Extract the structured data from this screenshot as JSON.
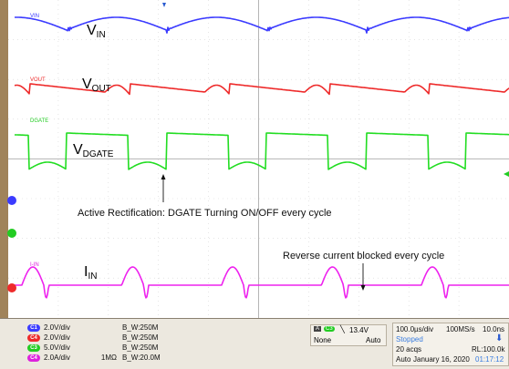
{
  "chart_data": {
    "type": "line",
    "title": "",
    "series": [
      {
        "name": "VIN",
        "label": "V",
        "label_sub": "IN",
        "channel_tag": "VIN",
        "color": "#3b3bff"
      },
      {
        "name": "VOUT",
        "label": "V",
        "label_sub": "OUT",
        "channel_tag": "VOUT",
        "color": "#ee2a2a"
      },
      {
        "name": "DGATE",
        "label": "V",
        "label_sub": "DGATE",
        "channel_tag": "DGATE",
        "color": "#22dd22"
      },
      {
        "name": "IIN",
        "label": "I",
        "label_sub": "IN",
        "channel_tag": "I-IN",
        "color": "#ee22ee"
      }
    ],
    "annotations": [
      {
        "text": "Active Rectification: DGATE Turning ON/OFF every cycle"
      },
      {
        "text": "Reverse current blocked every cycle"
      }
    ],
    "grid": true
  },
  "channel_panel": [
    {
      "tag": "C1",
      "scale": "2.0V/div",
      "extra": "",
      "bw": "B_W:250M",
      "color": "#3b3bff"
    },
    {
      "tag": "C4",
      "scale": "2.0V/div",
      "extra": "",
      "bw": "B_W:250M",
      "color": "#ee2a2a"
    },
    {
      "tag": "C3",
      "scale": "5.0V/div",
      "extra": "",
      "bw": "B_W:250M",
      "color": "#22cc22"
    },
    {
      "tag": "C4",
      "scale": "2.0A/div",
      "extra": "1MΩ",
      "bw": "B_W:20.0M",
      "color": "#dd22dd"
    }
  ],
  "trigger": {
    "source": "A",
    "channel": "C3",
    "level": "13.4V",
    "coupling": "None",
    "mode": "Auto"
  },
  "acquisition": {
    "time_div": "100.0µs/div",
    "sample_rate": "100MS/s",
    "record": "10.0ns",
    "state": "Stopped",
    "acqs": "20 acqs",
    "rl": "RL:100.0k",
    "mode": "Auto",
    "date": "January 16, 2020",
    "time": "01:17:12"
  }
}
